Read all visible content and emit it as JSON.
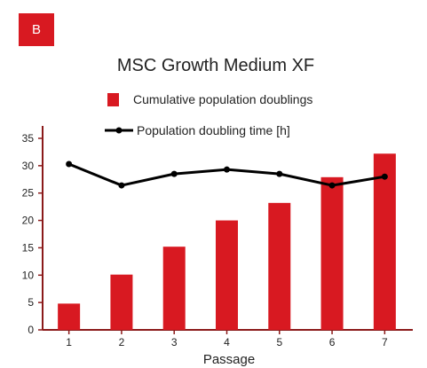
{
  "panel_label": "B",
  "colors": {
    "accent": "#d81921",
    "bar": "#d81921",
    "line": "#000000",
    "axis": "#8b1a1a"
  },
  "chart_data": {
    "type": "bar",
    "title": "MSC Growth Medium XF",
    "xlabel": "Passage",
    "ylabel": "",
    "categories": [
      "1",
      "2",
      "3",
      "4",
      "5",
      "6",
      "7"
    ],
    "ylim": [
      0,
      35
    ],
    "yticks": [
      0,
      5,
      10,
      15,
      20,
      25,
      30,
      35
    ],
    "grid": false,
    "legend_position": "top",
    "series": [
      {
        "name": "Cumulative population doublings",
        "type": "bar",
        "values": [
          4.8,
          10.1,
          15.2,
          20.0,
          23.2,
          27.9,
          32.2
        ]
      },
      {
        "name": "Population doubling time [h]",
        "type": "line",
        "values": [
          30.3,
          26.4,
          28.5,
          29.3,
          28.5,
          26.4,
          28.0
        ]
      }
    ]
  }
}
